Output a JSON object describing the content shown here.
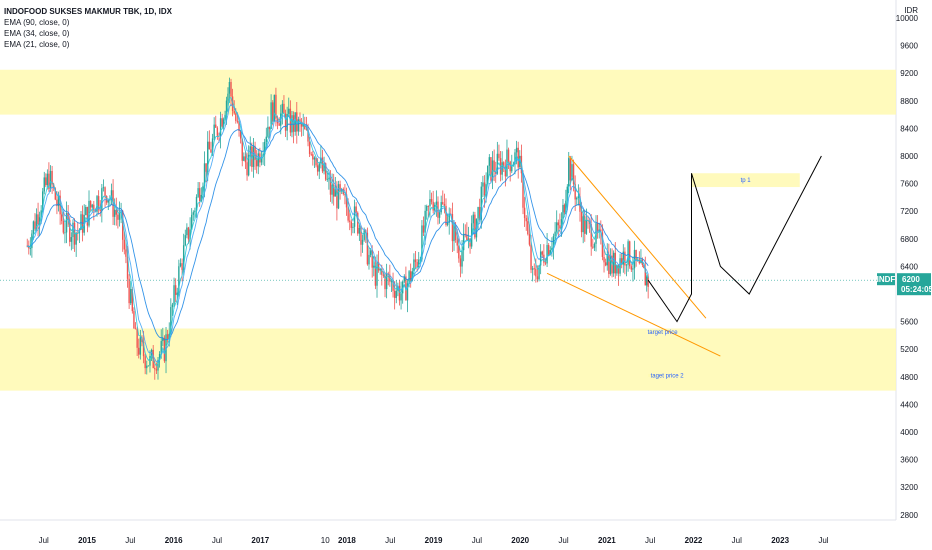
{
  "header": {
    "title": "INDOFOOD SUKSES MAKMUR TBK, 1D, IDX",
    "indicators": [
      "EMA (90, close, 0)",
      "EMA (34, close, 0)",
      "EMA (21, close, 0)"
    ]
  },
  "price_scale": {
    "currency": "IDR",
    "ticks": [
      "10000",
      "9600",
      "9200",
      "8800",
      "8400",
      "8000",
      "7600",
      "7200",
      "6800",
      "6400",
      "5600",
      "5200",
      "4800",
      "4400",
      "4000",
      "3600",
      "3200",
      "2800"
    ]
  },
  "time_scale": {
    "ticks": [
      {
        "label": "Jul",
        "bold": false
      },
      {
        "label": "2015",
        "bold": true
      },
      {
        "label": "Jul",
        "bold": false
      },
      {
        "label": "2016",
        "bold": true
      },
      {
        "label": "Jul",
        "bold": false
      },
      {
        "label": "2017",
        "bold": true
      },
      {
        "label": "10",
        "bold": false
      },
      {
        "label": "2018",
        "bold": true
      },
      {
        "label": "Jul",
        "bold": false
      },
      {
        "label": "2019",
        "bold": true
      },
      {
        "label": "Jul",
        "bold": false
      },
      {
        "label": "2020",
        "bold": true
      },
      {
        "label": "Jul",
        "bold": false
      },
      {
        "label": "2021",
        "bold": true
      },
      {
        "label": "Jul",
        "bold": false
      },
      {
        "label": "2022",
        "bold": true
      },
      {
        "label": "Jul",
        "bold": false
      },
      {
        "label": "2023",
        "bold": true
      },
      {
        "label": "Jul",
        "bold": false
      }
    ]
  },
  "last_price": {
    "symbol": "INDF",
    "price": "6200",
    "countdown": "05:24:05"
  },
  "annotations": {
    "tp1": "tp 1",
    "target_price": "target price",
    "target_price_2": "taget price 2"
  },
  "colors": {
    "up": "#26a69a",
    "down": "#ef5350",
    "ema_fast": "#2196f3",
    "ema_mid": "#2196f3",
    "zone": "#fff9b0",
    "wedge": "#ff9800",
    "projection": "#000000",
    "badge": "#26a69a"
  },
  "chart_data": {
    "type": "candlestick",
    "title": "INDOFOOD SUKSES MAKMUR TBK, 1D, IDX",
    "y_unit": "IDR",
    "ylim": [
      2400,
      10200
    ],
    "last_price": 6200,
    "price_path": [
      {
        "t": "2014-05",
        "p": 6700
      },
      {
        "t": "2014-08",
        "p": 7700
      },
      {
        "t": "2014-10",
        "p": 7000
      },
      {
        "t": "2014-12",
        "p": 6900
      },
      {
        "t": "2015-02",
        "p": 7300
      },
      {
        "t": "2015-04",
        "p": 7500
      },
      {
        "t": "2015-06",
        "p": 7000
      },
      {
        "t": "2015-08",
        "p": 5300
      },
      {
        "t": "2015-10",
        "p": 5000
      },
      {
        "t": "2015-12",
        "p": 5200
      },
      {
        "t": "2016-02",
        "p": 6300
      },
      {
        "t": "2016-04",
        "p": 7200
      },
      {
        "t": "2016-06",
        "p": 8000
      },
      {
        "t": "2016-08",
        "p": 8600
      },
      {
        "t": "2016-09",
        "p": 9000
      },
      {
        "t": "2016-11",
        "p": 7900
      },
      {
        "t": "2017-01",
        "p": 8000
      },
      {
        "t": "2017-03",
        "p": 8700
      },
      {
        "t": "2017-05",
        "p": 8500
      },
      {
        "t": "2017-07",
        "p": 8400
      },
      {
        "t": "2017-09",
        "p": 8000
      },
      {
        "t": "2017-11",
        "p": 7500
      },
      {
        "t": "2018-01",
        "p": 7300
      },
      {
        "t": "2018-03",
        "p": 7000
      },
      {
        "t": "2018-05",
        "p": 6300
      },
      {
        "t": "2018-07",
        "p": 6200
      },
      {
        "t": "2018-09",
        "p": 6000
      },
      {
        "t": "2018-11",
        "p": 6500
      },
      {
        "t": "2019-01",
        "p": 7400
      },
      {
        "t": "2019-03",
        "p": 7200
      },
      {
        "t": "2019-05",
        "p": 6600
      },
      {
        "t": "2019-07",
        "p": 7000
      },
      {
        "t": "2019-09",
        "p": 7800
      },
      {
        "t": "2019-11",
        "p": 7900
      },
      {
        "t": "2020-01",
        "p": 8000
      },
      {
        "t": "2020-03",
        "p": 6200
      },
      {
        "t": "2020-05",
        "p": 6700
      },
      {
        "t": "2020-07",
        "p": 7000
      },
      {
        "t": "2020-08",
        "p": 7900
      },
      {
        "t": "2020-10",
        "p": 7000
      },
      {
        "t": "2020-12",
        "p": 6800
      },
      {
        "t": "2021-02",
        "p": 6400
      },
      {
        "t": "2021-04",
        "p": 6600
      },
      {
        "t": "2021-06",
        "p": 6300
      },
      {
        "t": "2021-07",
        "p": 6200
      }
    ],
    "emas": [
      {
        "name": "EMA (90, close, 0)",
        "period": 90
      },
      {
        "name": "EMA (34, close, 0)",
        "period": 34
      },
      {
        "name": "EMA (21, close, 0)",
        "period": 21
      }
    ],
    "zones": [
      {
        "from": 8600,
        "to": 9250
      },
      {
        "from": 4600,
        "to": 5500
      },
      {
        "from": 7550,
        "to": 7750,
        "start": "2022-01",
        "end": "2023-04",
        "label": "tp 1"
      },
      {
        "from": 5420,
        "to": 5480,
        "start": "2021-07",
        "end": "2021-09",
        "label": "target price"
      },
      {
        "from": 4800,
        "to": 4840,
        "start": "2021-07",
        "end": "2021-09",
        "label": "taget price 2"
      }
    ],
    "projection": [
      {
        "t": "2021-07",
        "p": 6200
      },
      {
        "t": "2021-11",
        "p": 5600
      },
      {
        "t": "2022-01",
        "p": 6000
      },
      {
        "t": "2022-01",
        "p": 7750
      },
      {
        "t": "2022-05",
        "p": 6400
      },
      {
        "t": "2022-09",
        "p": 6000
      },
      {
        "t": "2023-07",
        "p": 8000
      }
    ]
  }
}
